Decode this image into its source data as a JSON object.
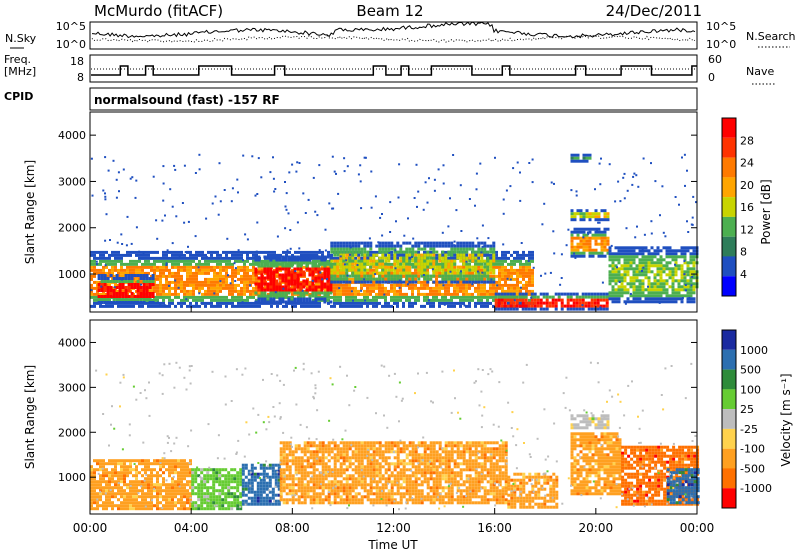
{
  "header": {
    "station": "McMurdo (fitACF)",
    "beam": "Beam 12",
    "date": "24/Dec/2011"
  },
  "noise_panel": {
    "left_label": "N.Sky",
    "right_label": "N.Search",
    "left_ticks": [
      "10^5",
      "10^0"
    ],
    "right_ticks": [
      "10^5",
      "10^0"
    ]
  },
  "freq_panel": {
    "left_label_line1": "Freq.",
    "left_label_line2": "[MHz]",
    "right_label": "Nave",
    "left_ticks": [
      "18",
      "8"
    ],
    "right_ticks": [
      "60",
      "0"
    ]
  },
  "cpid": {
    "label": "CPID",
    "text": "normalsound (fast) -157 RF"
  },
  "colors": {
    "power_scale": [
      "#0000ff",
      "#1f4fc0",
      "#2e7d5a",
      "#4caf50",
      "#c8d400",
      "#ffa500",
      "#ff7a00",
      "#ff3300",
      "#ff0000"
    ],
    "velocity_scale": [
      "#1a2aa0",
      "#2c6fb0",
      "#2e8b3a",
      "#66cc33",
      "#bdbdbd",
      "#ffd24d",
      "#ffa020",
      "#ff7000",
      "#ff0000"
    ]
  },
  "chart_data": [
    {
      "type": "heatmap",
      "name": "power",
      "ylabel": "Slant Range [km]",
      "xlabel": "",
      "colorbar_label": "Power [dB]",
      "ylim": [
        180,
        4500
      ],
      "xlim": [
        0,
        24
      ],
      "y_ticks": [
        "1000",
        "2000",
        "3000",
        "4000"
      ],
      "colorbar_ticks": [
        "28",
        "24",
        "20",
        "16",
        "12",
        "8",
        "4"
      ],
      "features": [
        {
          "t0": 0.0,
          "t1": 17.5,
          "r0": 300,
          "r1": 1500,
          "level": 20
        },
        {
          "t0": 0.3,
          "t1": 2.5,
          "r0": 400,
          "r1": 1000,
          "level": 28
        },
        {
          "t0": 6.5,
          "t1": 9.5,
          "r0": 400,
          "r1": 1400,
          "level": 28
        },
        {
          "t0": 9.5,
          "t1": 16.0,
          "r0": 800,
          "r1": 1700,
          "level": 14
        },
        {
          "t0": 16.0,
          "t1": 20.5,
          "r0": 250,
          "r1": 600,
          "level": 26
        },
        {
          "t0": 19.0,
          "t1": 20.5,
          "r0": 1400,
          "r1": 2000,
          "level": 20
        },
        {
          "t0": 19.0,
          "t1": 20.5,
          "r0": 2200,
          "r1": 2400,
          "level": 14
        },
        {
          "t0": 20.5,
          "t1": 24.0,
          "r0": 400,
          "r1": 1600,
          "level": 12
        },
        {
          "t0": 19.0,
          "t1": 19.8,
          "r0": 3450,
          "r1": 3600,
          "level": 10
        }
      ]
    },
    {
      "type": "heatmap",
      "name": "velocity",
      "ylabel": "Slant Range [km]",
      "xlabel": "Time UT",
      "colorbar_label": "Velocity [m s⁻¹]",
      "ylim": [
        180,
        4500
      ],
      "xlim": [
        0,
        24
      ],
      "y_ticks": [
        "1000",
        "2000",
        "3000",
        "4000"
      ],
      "x_ticks": [
        "00:00",
        "04:00",
        "08:00",
        "12:00",
        "16:00",
        "20:00",
        "00:00"
      ],
      "colorbar_ticks": [
        "1000",
        "500",
        "100",
        "25",
        "-25",
        "-100",
        "-500",
        "-1000"
      ],
      "features": [
        {
          "t0": 0.0,
          "t1": 4.0,
          "r0": 300,
          "r1": 1400,
          "level": -100
        },
        {
          "t0": 4.0,
          "t1": 6.0,
          "r0": 300,
          "r1": 1200,
          "level": 100
        },
        {
          "t0": 6.0,
          "t1": 7.5,
          "r0": 400,
          "r1": 1300,
          "level": 500
        },
        {
          "t0": 7.5,
          "t1": 16.5,
          "r0": 400,
          "r1": 1800,
          "level": -150
        },
        {
          "t0": 16.5,
          "t1": 18.5,
          "r0": 300,
          "r1": 1100,
          "level": -120
        },
        {
          "t0": 19.0,
          "t1": 21.0,
          "r0": 600,
          "r1": 2000,
          "level": -200
        },
        {
          "t0": 19.0,
          "t1": 20.5,
          "r0": 2100,
          "r1": 2400,
          "level": 0
        },
        {
          "t0": 21.0,
          "t1": 24.0,
          "r0": 400,
          "r1": 1700,
          "level": -300
        },
        {
          "t0": 22.8,
          "t1": 24.0,
          "r0": 400,
          "r1": 1200,
          "level": 600
        }
      ]
    }
  ]
}
